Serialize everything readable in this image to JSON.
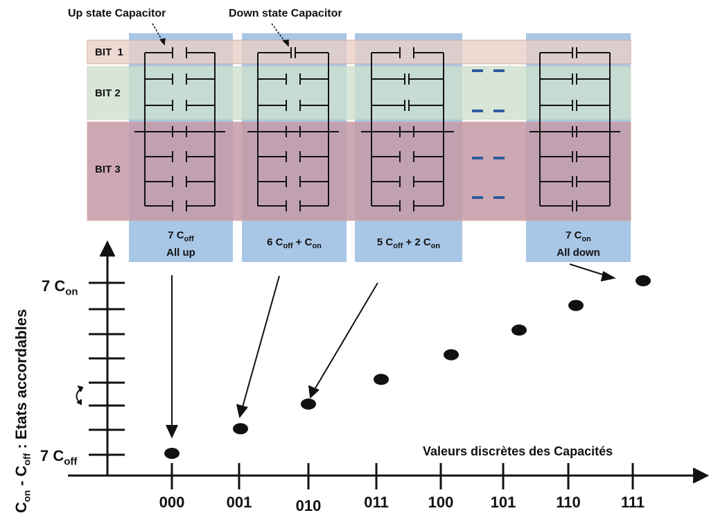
{
  "annotations": {
    "up_state": "Up state Capacitor",
    "down_state": "Down state Capacitor"
  },
  "bits": [
    "BIT  1",
    "BIT 2",
    "BIT 3"
  ],
  "columns": [
    {
      "line1": "7 C",
      "sub1": "off",
      "line2": "All up"
    },
    {
      "line1": "6 C",
      "sub1": "off",
      "mid": " + C",
      "sub2": "on"
    },
    {
      "line1": "5 C",
      "sub1": "off",
      "mid": " + 2 C",
      "sub2": "on"
    },
    {
      "line1": "7 C",
      "sub1": "on",
      "line2": "All down"
    }
  ],
  "x_axis": {
    "title": "Valeurs discrètes des Capacités",
    "ticks": [
      "000",
      "001",
      "010",
      "011",
      "100",
      "101",
      "110",
      "111"
    ]
  },
  "y_axis": {
    "title_main1": "C",
    "title_sub1": "on",
    "title_main2": " - C",
    "title_sub2": "off",
    "title_main3": " : Etats accordables",
    "top_label_main": "7 C",
    "top_label_sub": "on",
    "bottom_label_main": "7 C",
    "bottom_label_sub": "off"
  },
  "chart_data": {
    "type": "scatter",
    "x": [
      "000",
      "001",
      "010",
      "011",
      "100",
      "101",
      "110",
      "111"
    ],
    "y": [
      0,
      1,
      2,
      3,
      4,
      5,
      6,
      7
    ],
    "xlabel": "Valeurs discrètes des Capacités",
    "ylabel": "Con - Coff : Etats accordables"
  },
  "colors": {
    "bit1_band": "#e8cfc7",
    "bit2_band": "#cde0cc",
    "bit3_band": "#c59aa6",
    "column_bg": "#a8c6e6",
    "dash": "#2e5c9e"
  }
}
